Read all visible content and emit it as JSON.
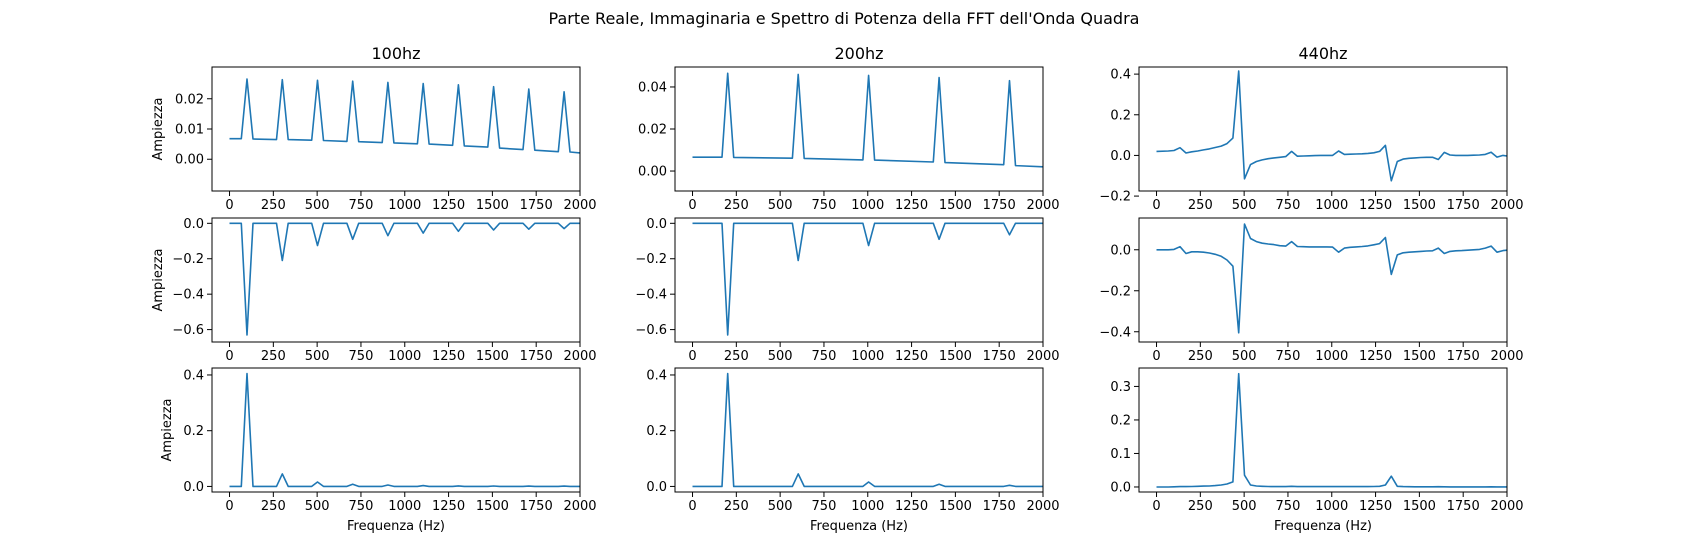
{
  "figure": {
    "title": "Parte Reale, Immaginaria e Spettro di Potenza della FFT dell'Onda Quadra",
    "line_color": "#1f77b4"
  },
  "chart_data": [
    {
      "type": "line",
      "title": "100hz",
      "xlabel": "",
      "ylabel": "Ampiezza",
      "xlim": [
        -100,
        2000
      ],
      "ylim": [
        -0.0105,
        0.0305
      ],
      "xticks": [
        0,
        250,
        500,
        750,
        1000,
        1250,
        1500,
        1750,
        2000
      ],
      "xticklabels": [
        "0",
        "250",
        "500",
        "750",
        "1000",
        "1250",
        "1500",
        "1750",
        "2000"
      ],
      "yticks": [
        0,
        0.01,
        0.02
      ],
      "yticklabels": [
        "0.00",
        "0.01",
        "0.02"
      ],
      "grid": false,
      "series": [
        {
          "x": [
            0,
            67,
            100,
            134,
            268,
            301,
            335,
            469,
            502,
            536,
            670,
            703,
            737,
            871,
            904,
            938,
            1072,
            1105,
            1139,
            1273,
            1306,
            1340,
            1474,
            1507,
            1541,
            1675,
            1708,
            1742,
            1876,
            1909,
            1943,
            2000
          ],
          "y": [
            0.0068,
            0.0068,
            0.0265,
            0.0067,
            0.0065,
            0.0263,
            0.0065,
            0.0063,
            0.0261,
            0.0062,
            0.0059,
            0.0258,
            0.0058,
            0.0055,
            0.0254,
            0.0054,
            0.0051,
            0.025,
            0.005,
            0.0046,
            0.0246,
            0.0044,
            0.004,
            0.024,
            0.0037,
            0.0032,
            0.0232,
            0.003,
            0.0025,
            0.0223,
            0.0024,
            0.0021
          ]
        }
      ]
    },
    {
      "type": "line",
      "title": "200hz",
      "xlabel": "",
      "ylabel": "",
      "xlim": [
        -100,
        2000
      ],
      "ylim": [
        -0.0095,
        0.0495
      ],
      "xticks": [
        0,
        250,
        500,
        750,
        1000,
        1250,
        1500,
        1750,
        2000
      ],
      "xticklabels": [
        "0",
        "250",
        "500",
        "750",
        "1000",
        "1250",
        "1500",
        "1750",
        "2000"
      ],
      "yticks": [
        0,
        0.02,
        0.04
      ],
      "yticklabels": [
        "0.00",
        "0.02",
        "0.04"
      ],
      "grid": false,
      "series": [
        {
          "x": [
            0,
            168,
            201,
            235,
            570,
            603,
            637,
            972,
            1005,
            1039,
            1374,
            1407,
            1441,
            1776,
            1809,
            1843,
            2000
          ],
          "y": [
            0.0066,
            0.0066,
            0.0465,
            0.0065,
            0.0061,
            0.046,
            0.006,
            0.0053,
            0.0455,
            0.0052,
            0.0043,
            0.0445,
            0.004,
            0.003,
            0.043,
            0.0026,
            0.002
          ]
        }
      ]
    },
    {
      "type": "line",
      "title": "440hz",
      "xlabel": "",
      "ylabel": "",
      "xlim": [
        -100,
        2000
      ],
      "ylim": [
        -0.175,
        0.435
      ],
      "xticks": [
        0,
        250,
        500,
        750,
        1000,
        1250,
        1500,
        1750,
        2000
      ],
      "xticklabels": [
        "0",
        "250",
        "500",
        "750",
        "1000",
        "1250",
        "1500",
        "1750",
        "2000"
      ],
      "yticks": [
        -0.2,
        0,
        0.2,
        0.4
      ],
      "yticklabels": [
        "−0.2",
        "0.0",
        "0.2",
        "0.4"
      ],
      "grid": false,
      "series": [
        {
          "x": [
            0,
            67,
            100,
            134,
            168,
            201,
            235,
            268,
            301,
            335,
            369,
            402,
            436,
            469,
            502,
            536,
            570,
            603,
            637,
            670,
            703,
            737,
            771,
            804,
            838,
            871,
            904,
            938,
            972,
            1005,
            1039,
            1072,
            1105,
            1139,
            1173,
            1206,
            1240,
            1273,
            1306,
            1340,
            1374,
            1407,
            1441,
            1474,
            1507,
            1541,
            1575,
            1608,
            1642,
            1675,
            1708,
            1742,
            1776,
            1809,
            1843,
            1876,
            1909,
            1943,
            1977,
            2000
          ],
          "y": [
            0.02,
            0.022,
            0.024,
            0.038,
            0.012,
            0.018,
            0.022,
            0.027,
            0.032,
            0.039,
            0.046,
            0.058,
            0.085,
            0.415,
            -0.115,
            -0.045,
            -0.03,
            -0.022,
            -0.016,
            -0.012,
            -0.009,
            -0.006,
            0.02,
            -0.004,
            -0.003,
            -0.002,
            -0.001,
            0.0,
            0.0,
            0.0,
            0.022,
            0.005,
            0.006,
            0.007,
            0.008,
            0.01,
            0.013,
            0.02,
            0.05,
            -0.125,
            -0.03,
            -0.018,
            -0.014,
            -0.012,
            -0.01,
            -0.009,
            -0.009,
            -0.02,
            0.015,
            0.002,
            0.0,
            0.0,
            0.0,
            0.001,
            0.002,
            0.005,
            0.016,
            -0.008,
            0.0,
            -0.003
          ]
        }
      ]
    },
    {
      "type": "line",
      "title": "",
      "xlabel": "",
      "ylabel": "Ampiezza",
      "xlim": [
        -100,
        2000
      ],
      "ylim": [
        -0.67,
        0.03
      ],
      "xticks": [
        0,
        250,
        500,
        750,
        1000,
        1250,
        1500,
        1750,
        2000
      ],
      "xticklabels": [
        "0",
        "250",
        "500",
        "750",
        "1000",
        "1250",
        "1500",
        "1750",
        "2000"
      ],
      "yticks": [
        -0.6,
        -0.4,
        -0.2,
        0
      ],
      "yticklabels": [
        "−0.6",
        "−0.4",
        "−0.2",
        "0.0"
      ],
      "grid": false,
      "series": [
        {
          "x": [
            0,
            67,
            100,
            134,
            268,
            301,
            335,
            469,
            502,
            536,
            670,
            703,
            737,
            871,
            904,
            938,
            1072,
            1105,
            1139,
            1273,
            1306,
            1340,
            1474,
            1507,
            1541,
            1675,
            1708,
            1742,
            1876,
            1909,
            1943,
            2000
          ],
          "y": [
            0.0,
            0.0,
            -0.63,
            0.0,
            0.0,
            -0.21,
            0.0,
            0.0,
            -0.125,
            0.0,
            0.0,
            -0.09,
            0.0,
            0.0,
            -0.07,
            0.0,
            0.0,
            -0.055,
            0.0,
            0.0,
            -0.045,
            0.0,
            0.0,
            -0.038,
            0.0,
            0.0,
            -0.033,
            0.0,
            0.0,
            -0.03,
            0.0,
            0.0
          ]
        }
      ]
    },
    {
      "type": "line",
      "title": "",
      "xlabel": "",
      "ylabel": "",
      "xlim": [
        -100,
        2000
      ],
      "ylim": [
        -0.67,
        0.03
      ],
      "xticks": [
        0,
        250,
        500,
        750,
        1000,
        1250,
        1500,
        1750,
        2000
      ],
      "xticklabels": [
        "0",
        "250",
        "500",
        "750",
        "1000",
        "1250",
        "1500",
        "1750",
        "2000"
      ],
      "yticks": [
        -0.6,
        -0.4,
        -0.2,
        0
      ],
      "yticklabels": [
        "−0.6",
        "−0.4",
        "−0.2",
        "0.0"
      ],
      "grid": false,
      "series": [
        {
          "x": [
            0,
            168,
            201,
            235,
            570,
            603,
            637,
            972,
            1005,
            1039,
            1374,
            1407,
            1441,
            1776,
            1809,
            1843,
            2000
          ],
          "y": [
            0.0,
            0.0,
            -0.63,
            0.0,
            0.0,
            -0.21,
            0.0,
            0.0,
            -0.125,
            0.0,
            0.0,
            -0.09,
            0.0,
            0.0,
            -0.065,
            0.0,
            0.0
          ]
        }
      ]
    },
    {
      "type": "line",
      "title": "",
      "xlabel": "",
      "ylabel": "",
      "xlim": [
        -100,
        2000
      ],
      "ylim": [
        -0.45,
        0.155
      ],
      "xticks": [
        0,
        250,
        500,
        750,
        1000,
        1250,
        1500,
        1750,
        2000
      ],
      "xticklabels": [
        "0",
        "250",
        "500",
        "750",
        "1000",
        "1250",
        "1500",
        "1750",
        "2000"
      ],
      "yticks": [
        -0.4,
        -0.2,
        0
      ],
      "yticklabels": [
        "−0.4",
        "−0.2",
        "0.0"
      ],
      "grid": false,
      "series": [
        {
          "x": [
            0,
            67,
            100,
            134,
            168,
            201,
            235,
            268,
            301,
            335,
            369,
            402,
            436,
            469,
            502,
            536,
            570,
            603,
            637,
            670,
            703,
            737,
            771,
            804,
            838,
            871,
            904,
            938,
            972,
            1005,
            1039,
            1072,
            1105,
            1139,
            1173,
            1206,
            1240,
            1273,
            1306,
            1340,
            1374,
            1407,
            1441,
            1474,
            1507,
            1541,
            1575,
            1608,
            1642,
            1675,
            1708,
            1742,
            1776,
            1809,
            1843,
            1876,
            1909,
            1943,
            1977,
            2000
          ],
          "y": [
            0.0,
            0.0,
            0.002,
            0.015,
            -0.018,
            -0.01,
            -0.01,
            -0.012,
            -0.016,
            -0.022,
            -0.032,
            -0.05,
            -0.08,
            -0.405,
            0.125,
            0.055,
            0.04,
            0.032,
            0.028,
            0.025,
            0.02,
            0.018,
            0.04,
            0.016,
            0.015,
            0.014,
            0.014,
            0.014,
            0.014,
            0.013,
            -0.012,
            0.008,
            0.012,
            0.014,
            0.016,
            0.019,
            0.024,
            0.03,
            0.06,
            -0.12,
            -0.025,
            -0.015,
            -0.012,
            -0.01,
            -0.008,
            -0.006,
            -0.005,
            0.008,
            -0.018,
            -0.008,
            -0.005,
            -0.004,
            -0.002,
            0.0,
            0.002,
            0.008,
            0.018,
            -0.012,
            -0.004,
            -0.002
          ]
        }
      ]
    },
    {
      "type": "line",
      "title": "",
      "xlabel": "Frequenza (Hz)",
      "ylabel": "Ampiezza",
      "xlim": [
        -100,
        2000
      ],
      "ylim": [
        -0.02,
        0.425
      ],
      "xticks": [
        0,
        250,
        500,
        750,
        1000,
        1250,
        1500,
        1750,
        2000
      ],
      "xticklabels": [
        "0",
        "250",
        "500",
        "750",
        "1000",
        "1250",
        "1500",
        "1750",
        "2000"
      ],
      "yticks": [
        0,
        0.2,
        0.4
      ],
      "yticklabels": [
        "0.0",
        "0.2",
        "0.4"
      ],
      "grid": false,
      "series": [
        {
          "x": [
            0,
            67,
            100,
            134,
            268,
            301,
            335,
            469,
            502,
            536,
            670,
            703,
            737,
            871,
            904,
            938,
            1072,
            1105,
            1139,
            1273,
            1306,
            1340,
            1474,
            1507,
            1541,
            1675,
            1708,
            1742,
            1876,
            1909,
            1943,
            2000
          ],
          "y": [
            0.0,
            0.0,
            0.405,
            0.0,
            0.0,
            0.045,
            0.0,
            0.0,
            0.016,
            0.0,
            0.0,
            0.008,
            0.0,
            0.0,
            0.005,
            0.0,
            0.0,
            0.003,
            0.0,
            0.0,
            0.002,
            0.0,
            0.0,
            0.0015,
            0.0,
            0.0,
            0.001,
            0.0,
            0.0,
            0.001,
            0.0,
            0.0
          ]
        }
      ]
    },
    {
      "type": "line",
      "title": "",
      "xlabel": "Frequenza (Hz)",
      "ylabel": "",
      "xlim": [
        -100,
        2000
      ],
      "ylim": [
        -0.02,
        0.425
      ],
      "xticks": [
        0,
        250,
        500,
        750,
        1000,
        1250,
        1500,
        1750,
        2000
      ],
      "xticklabels": [
        "0",
        "250",
        "500",
        "750",
        "1000",
        "1250",
        "1500",
        "1750",
        "2000"
      ],
      "yticks": [
        0,
        0.2,
        0.4
      ],
      "yticklabels": [
        "0.0",
        "0.2",
        "0.4"
      ],
      "grid": false,
      "series": [
        {
          "x": [
            0,
            168,
            201,
            235,
            570,
            603,
            637,
            972,
            1005,
            1039,
            1374,
            1407,
            1441,
            1776,
            1809,
            1843,
            2000
          ],
          "y": [
            0.0,
            0.0,
            0.405,
            0.0,
            0.0,
            0.045,
            0.0,
            0.0,
            0.016,
            0.0,
            0.0,
            0.008,
            0.0,
            0.0,
            0.004,
            0.0,
            0.0
          ]
        }
      ]
    },
    {
      "type": "line",
      "title": "",
      "xlabel": "Frequenza (Hz)",
      "ylabel": "",
      "xlim": [
        -100,
        2000
      ],
      "ylim": [
        -0.015,
        0.355
      ],
      "xticks": [
        0,
        250,
        500,
        750,
        1000,
        1250,
        1500,
        1750,
        2000
      ],
      "xticklabels": [
        "0",
        "250",
        "500",
        "750",
        "1000",
        "1250",
        "1500",
        "1750",
        "2000"
      ],
      "yticks": [
        0,
        0.1,
        0.2,
        0.3
      ],
      "yticklabels": [
        "0.0",
        "0.1",
        "0.2",
        "0.3"
      ],
      "grid": false,
      "series": [
        {
          "x": [
            0,
            67,
            100,
            134,
            168,
            201,
            235,
            268,
            301,
            335,
            369,
            402,
            436,
            469,
            502,
            536,
            570,
            603,
            637,
            670,
            703,
            737,
            771,
            804,
            838,
            871,
            904,
            938,
            972,
            1005,
            1039,
            1072,
            1105,
            1139,
            1173,
            1206,
            1240,
            1273,
            1306,
            1340,
            1374,
            1407,
            1441,
            1474,
            1507,
            1541,
            1575,
            1608,
            1642,
            1675,
            1708,
            1742,
            1776,
            1809,
            1843,
            1876,
            1909,
            1943,
            1977,
            2000
          ],
          "y": [
            0.0,
            0.0,
            0.0005,
            0.001,
            0.001,
            0.0015,
            0.002,
            0.0025,
            0.003,
            0.004,
            0.006,
            0.009,
            0.015,
            0.338,
            0.035,
            0.006,
            0.003,
            0.002,
            0.0015,
            0.001,
            0.001,
            0.001,
            0.002,
            0.001,
            0.001,
            0.001,
            0.001,
            0.001,
            0.001,
            0.001,
            0.001,
            0.001,
            0.001,
            0.001,
            0.001,
            0.0012,
            0.0015,
            0.002,
            0.006,
            0.032,
            0.002,
            0.001,
            0.0008,
            0.0006,
            0.0005,
            0.0005,
            0.0005,
            0.0008,
            0.0005,
            0.0002,
            0.0001,
            0.0001,
            0.0001,
            0.0001,
            0.0002,
            0.0003,
            0.0005,
            0.0002,
            0.0001,
            0.0001
          ]
        }
      ]
    }
  ]
}
